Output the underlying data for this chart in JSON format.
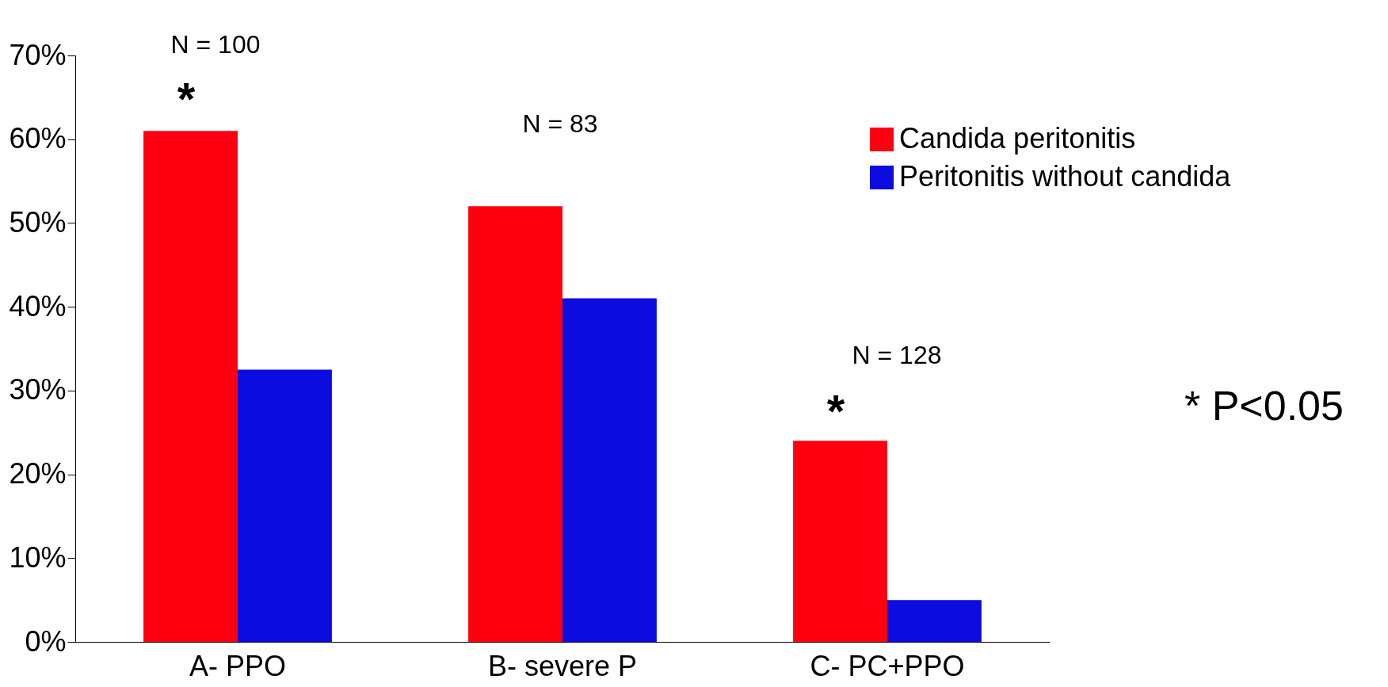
{
  "chart_data": {
    "type": "bar",
    "categories": [
      "A- PPO",
      "B- severe P",
      "C- PC+PPO"
    ],
    "series": [
      {
        "name": "Candida peritonitis",
        "color": "#ff0010",
        "values": [
          61,
          52,
          24
        ]
      },
      {
        "name": "Peritonitis without candida",
        "color": "#0c0ce0",
        "values": [
          32.5,
          41,
          5
        ]
      }
    ],
    "ylim": [
      0,
      70
    ],
    "yticks": [
      {
        "value": 0,
        "label": "0%"
      },
      {
        "value": 10,
        "label": "10%"
      },
      {
        "value": 20,
        "label": "20%"
      },
      {
        "value": 30,
        "label": "30%"
      },
      {
        "value": 40,
        "label": "40%"
      },
      {
        "value": 50,
        "label": "50%"
      },
      {
        "value": 60,
        "label": "60%"
      },
      {
        "value": 70,
        "label": "70%"
      }
    ],
    "grid": false,
    "legend": "top right",
    "annotations": [
      "N = 100",
      "*",
      "N = 83",
      "N = 128",
      "*",
      "* P<0.05"
    ]
  }
}
